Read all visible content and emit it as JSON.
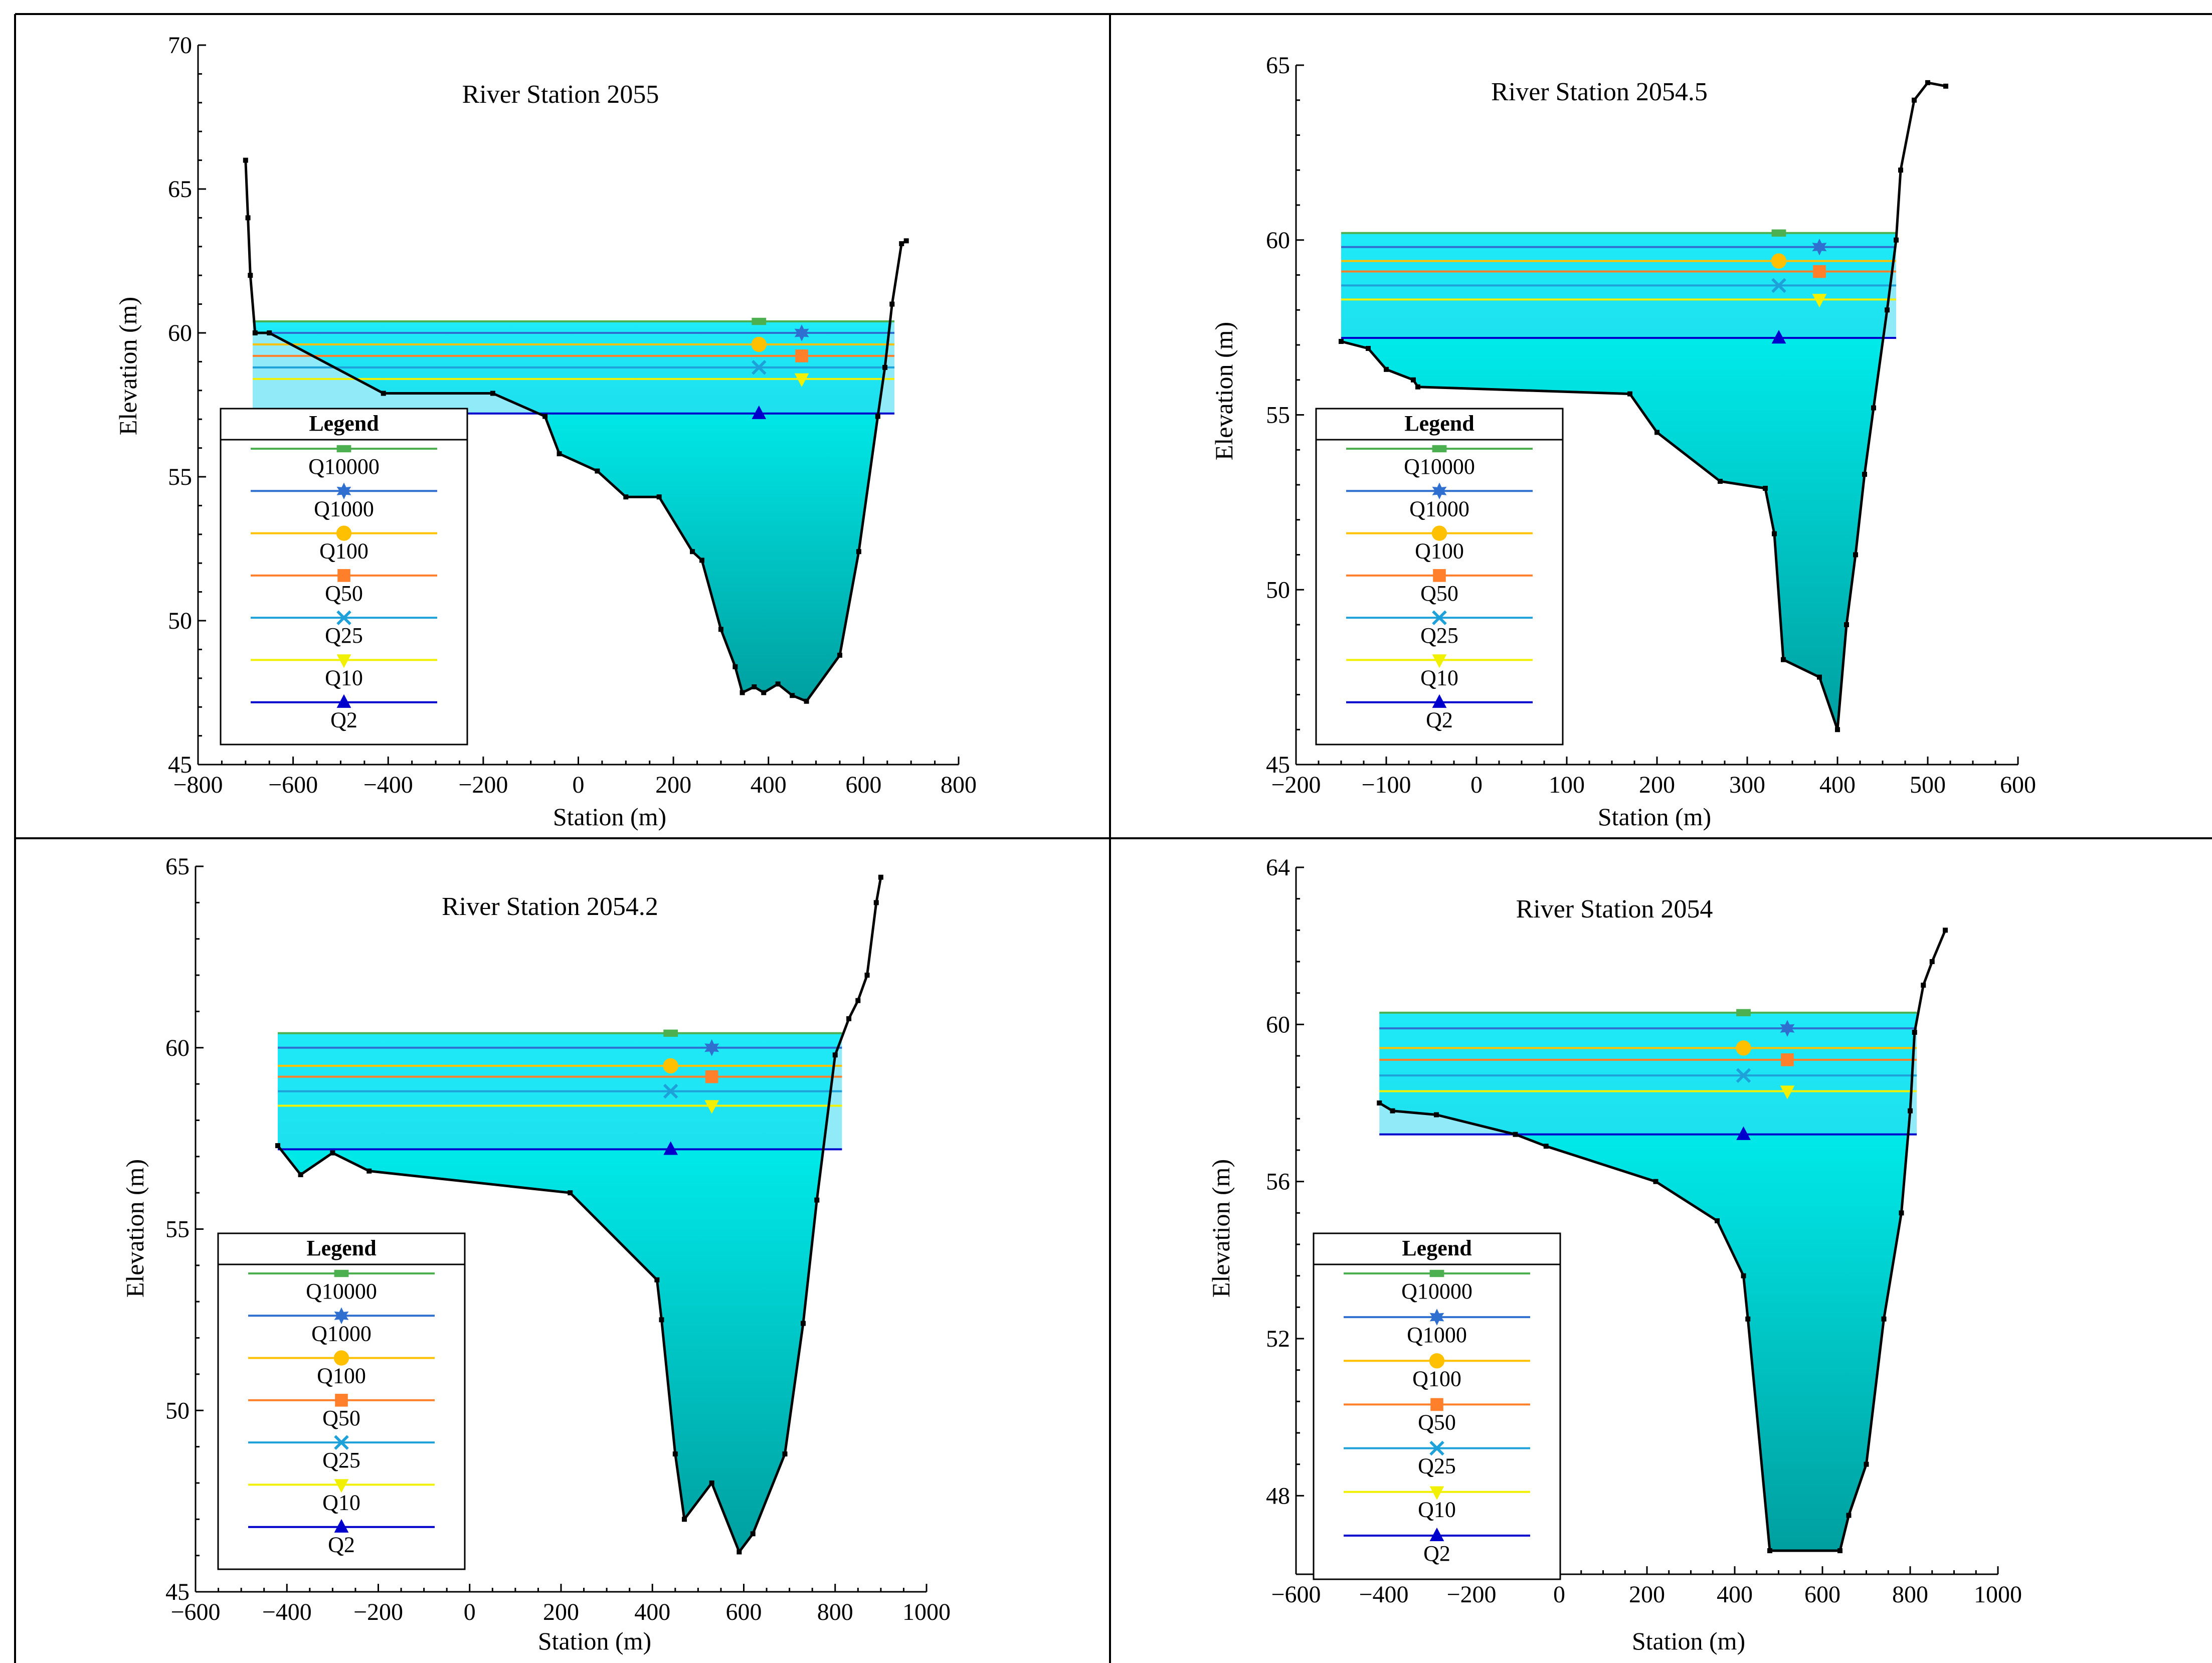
{
  "chart_data": [
    {
      "type": "area",
      "title": "River Station 2055",
      "xlabel": "Station (m)",
      "ylabel": "Elevation (m)",
      "xlim": [
        -800,
        800
      ],
      "ylim": [
        45,
        70
      ],
      "xticks": [
        -800,
        -600,
        -400,
        -200,
        0,
        200,
        400,
        600,
        800
      ],
      "yticks": [
        45,
        50,
        55,
        60,
        65,
        70
      ],
      "xtick_labels": [
        "−800",
        "−600",
        "−400",
        "−200",
        "0",
        "200",
        "400",
        "600",
        "800"
      ],
      "ytick_labels": [
        "45",
        "50",
        "55",
        "60",
        "65",
        "70"
      ],
      "legend_position": "lower-left",
      "ground": [
        [
          -700,
          66
        ],
        [
          -695,
          64
        ],
        [
          -690,
          62
        ],
        [
          -680,
          60
        ],
        [
          -650,
          60
        ],
        [
          -410,
          57.9
        ],
        [
          -180,
          57.9
        ],
        [
          -70,
          57.1
        ],
        [
          -40,
          55.8
        ],
        [
          40,
          55.2
        ],
        [
          100,
          54.3
        ],
        [
          170,
          54.3
        ],
        [
          240,
          52.4
        ],
        [
          260,
          52.1
        ],
        [
          300,
          49.7
        ],
        [
          330,
          48.4
        ],
        [
          345,
          47.5
        ],
        [
          370,
          47.7
        ],
        [
          390,
          47.5
        ],
        [
          420,
          47.8
        ],
        [
          450,
          47.4
        ],
        [
          480,
          47.2
        ],
        [
          550,
          48.8
        ],
        [
          590,
          52.4
        ],
        [
          630,
          57.1
        ],
        [
          645,
          58.8
        ],
        [
          660,
          61
        ],
        [
          680,
          63.1
        ],
        [
          690,
          63.2
        ]
      ],
      "water": {
        "left_x": -685,
        "right_x": 665
      },
      "series": [
        {
          "name": "Q10000",
          "elevation": 60.4,
          "marker_x": 380,
          "color": "#4caf50",
          "marker": "rect"
        },
        {
          "name": "Q1000",
          "elevation": 60.0,
          "marker_x": 470,
          "color": "#2f6fd0",
          "marker": "star"
        },
        {
          "name": "Q100",
          "elevation": 59.6,
          "marker_x": 380,
          "color": "#ffc000",
          "marker": "circle"
        },
        {
          "name": "Q50",
          "elevation": 59.2,
          "marker_x": 470,
          "color": "#ff7f2a",
          "marker": "square"
        },
        {
          "name": "Q25",
          "elevation": 58.8,
          "marker_x": 380,
          "color": "#1ea0d8",
          "marker": "x"
        },
        {
          "name": "Q10",
          "elevation": 58.4,
          "marker_x": 470,
          "color": "#f0f000",
          "marker": "tri-down"
        },
        {
          "name": "Q2",
          "elevation": 57.2,
          "marker_x": 380,
          "color": "#0000cc",
          "marker": "tri-up"
        }
      ]
    },
    {
      "type": "area",
      "title": "River Station 2054.5",
      "xlabel": "Station (m)",
      "ylabel": "Elevation (m)",
      "xlim": [
        -200,
        600
      ],
      "ylim": [
        45,
        65
      ],
      "xticks": [
        -200,
        -100,
        0,
        100,
        200,
        300,
        400,
        500,
        600
      ],
      "yticks": [
        45,
        50,
        55,
        60,
        65
      ],
      "xtick_labels": [
        "−200",
        "−100",
        "0",
        "100",
        "200",
        "300",
        "400",
        "500",
        "600"
      ],
      "ytick_labels": [
        "45",
        "50",
        "55",
        "60",
        "65"
      ],
      "legend_position": "lower-left",
      "ground": [
        [
          -150,
          57.1
        ],
        [
          -120,
          56.9
        ],
        [
          -100,
          56.3
        ],
        [
          -70,
          56
        ],
        [
          -65,
          55.8
        ],
        [
          170,
          55.6
        ],
        [
          200,
          54.5
        ],
        [
          270,
          53.1
        ],
        [
          320,
          52.9
        ],
        [
          330,
          51.6
        ],
        [
          340,
          48
        ],
        [
          380,
          47.5
        ],
        [
          400,
          46
        ],
        [
          410,
          49
        ],
        [
          420,
          51
        ],
        [
          430,
          53.3
        ],
        [
          440,
          55.2
        ],
        [
          455,
          58
        ],
        [
          465,
          60
        ],
        [
          470,
          62
        ],
        [
          485,
          64
        ],
        [
          500,
          64.5
        ],
        [
          520,
          64.4
        ]
      ],
      "water": {
        "left_x": -150,
        "right_x": 465
      },
      "series": [
        {
          "name": "Q10000",
          "elevation": 60.2,
          "marker_x": 335,
          "color": "#4caf50",
          "marker": "rect"
        },
        {
          "name": "Q1000",
          "elevation": 59.8,
          "marker_x": 380,
          "color": "#2f6fd0",
          "marker": "star"
        },
        {
          "name": "Q100",
          "elevation": 59.4,
          "marker_x": 335,
          "color": "#ffc000",
          "marker": "circle"
        },
        {
          "name": "Q50",
          "elevation": 59.1,
          "marker_x": 380,
          "color": "#ff7f2a",
          "marker": "square"
        },
        {
          "name": "Q25",
          "elevation": 58.7,
          "marker_x": 335,
          "color": "#1ea0d8",
          "marker": "x"
        },
        {
          "name": "Q10",
          "elevation": 58.3,
          "marker_x": 380,
          "color": "#f0f000",
          "marker": "tri-down"
        },
        {
          "name": "Q2",
          "elevation": 57.2,
          "marker_x": 335,
          "color": "#0000cc",
          "marker": "tri-up"
        }
      ]
    },
    {
      "type": "area",
      "title": "River Station 2054.2",
      "xlabel": "Station (m)",
      "ylabel": "Elevation (m)",
      "xlim": [
        -600,
        1000
      ],
      "ylim": [
        45,
        65
      ],
      "xticks": [
        -600,
        -400,
        -200,
        0,
        200,
        400,
        600,
        800,
        1000
      ],
      "yticks": [
        45,
        50,
        55,
        60,
        65
      ],
      "xtick_labels": [
        "−600",
        "−400",
        "−200",
        "0",
        "200",
        "400",
        "600",
        "800",
        "1000"
      ],
      "ytick_labels": [
        "45",
        "50",
        "55",
        "60",
        "65"
      ],
      "legend_position": "lower-left",
      "ground": [
        [
          -420,
          57.3
        ],
        [
          -370,
          56.5
        ],
        [
          -300,
          57.1
        ],
        [
          -220,
          56.6
        ],
        [
          220,
          56.0
        ],
        [
          410,
          53.6
        ],
        [
          420,
          52.5
        ],
        [
          450,
          48.8
        ],
        [
          470,
          47.0
        ],
        [
          530,
          48.0
        ],
        [
          590,
          46.1
        ],
        [
          620,
          46.6
        ],
        [
          690,
          48.8
        ],
        [
          730,
          52.4
        ],
        [
          760,
          55.8
        ],
        [
          800,
          59.8
        ],
        [
          830,
          60.8
        ],
        [
          850,
          61.3
        ],
        [
          870,
          62
        ],
        [
          890,
          64
        ],
        [
          900,
          64.7
        ]
      ],
      "water": {
        "left_x": -420,
        "right_x": 815
      },
      "series": [
        {
          "name": "Q10000",
          "elevation": 60.4,
          "marker_x": 440,
          "color": "#4caf50",
          "marker": "rect"
        },
        {
          "name": "Q1000",
          "elevation": 60.0,
          "marker_x": 530,
          "color": "#2f6fd0",
          "marker": "star"
        },
        {
          "name": "Q100",
          "elevation": 59.5,
          "marker_x": 440,
          "color": "#ffc000",
          "marker": "circle"
        },
        {
          "name": "Q50",
          "elevation": 59.2,
          "marker_x": 530,
          "color": "#ff7f2a",
          "marker": "square"
        },
        {
          "name": "Q25",
          "elevation": 58.8,
          "marker_x": 440,
          "color": "#1ea0d8",
          "marker": "x"
        },
        {
          "name": "Q10",
          "elevation": 58.4,
          "marker_x": 530,
          "color": "#f0f000",
          "marker": "tri-down"
        },
        {
          "name": "Q2",
          "elevation": 57.2,
          "marker_x": 440,
          "color": "#0000cc",
          "marker": "tri-up"
        }
      ]
    },
    {
      "type": "area",
      "title": "River Station 2054",
      "xlabel": "Station (m)",
      "ylabel": "Elevation (m)",
      "xlim": [
        -600,
        1000
      ],
      "ylim": [
        46,
        64
      ],
      "xticks": [
        -600,
        -400,
        -200,
        0,
        200,
        400,
        600,
        800,
        1000
      ],
      "yticks": [
        48,
        52,
        56,
        60,
        64
      ],
      "xtick_labels": [
        "−600",
        "−400",
        "−200",
        "0",
        "200",
        "400",
        "600",
        "800",
        "1000"
      ],
      "ytick_labels": [
        "48",
        "52",
        "56",
        "60",
        "64"
      ],
      "legend_position": "lower-left",
      "ground": [
        [
          -410,
          58.0
        ],
        [
          -380,
          57.8
        ],
        [
          -280,
          57.7
        ],
        [
          -100,
          57.2
        ],
        [
          -30,
          56.9
        ],
        [
          220,
          56.0
        ],
        [
          360,
          55.0
        ],
        [
          420,
          53.6
        ],
        [
          430,
          52.5
        ],
        [
          480,
          46.6
        ],
        [
          640,
          46.6
        ],
        [
          660,
          47.5
        ],
        [
          700,
          48.8
        ],
        [
          740,
          52.5
        ],
        [
          780,
          55.2
        ],
        [
          800,
          57.8
        ],
        [
          810,
          59.8
        ],
        [
          830,
          61.0
        ],
        [
          850,
          61.6
        ],
        [
          880,
          62.4
        ]
      ],
      "water": {
        "left_x": -410,
        "right_x": 815
      },
      "series": [
        {
          "name": "Q10000",
          "elevation": 60.3,
          "marker_x": 420,
          "color": "#4caf50",
          "marker": "rect"
        },
        {
          "name": "Q1000",
          "elevation": 59.9,
          "marker_x": 520,
          "color": "#2f6fd0",
          "marker": "star"
        },
        {
          "name": "Q100",
          "elevation": 59.4,
          "marker_x": 420,
          "color": "#ffc000",
          "marker": "circle"
        },
        {
          "name": "Q50",
          "elevation": 59.1,
          "marker_x": 520,
          "color": "#ff7f2a",
          "marker": "square"
        },
        {
          "name": "Q25",
          "elevation": 58.7,
          "marker_x": 420,
          "color": "#1ea0d8",
          "marker": "x"
        },
        {
          "name": "Q10",
          "elevation": 58.3,
          "marker_x": 520,
          "color": "#f0f000",
          "marker": "tri-down"
        },
        {
          "name": "Q2",
          "elevation": 57.2,
          "marker_x": 420,
          "color": "#0000cc",
          "marker": "tri-up"
        }
      ]
    }
  ],
  "legend": {
    "title": "Legend",
    "entries": [
      "Q10000",
      "Q1000",
      "Q100",
      "Q50",
      "Q25",
      "Q10",
      "Q2"
    ]
  },
  "colors": {
    "water_top": "#00ffff",
    "water_bottom": "#009f9f",
    "band": "#3cd6f0",
    "ground": "#000000"
  }
}
